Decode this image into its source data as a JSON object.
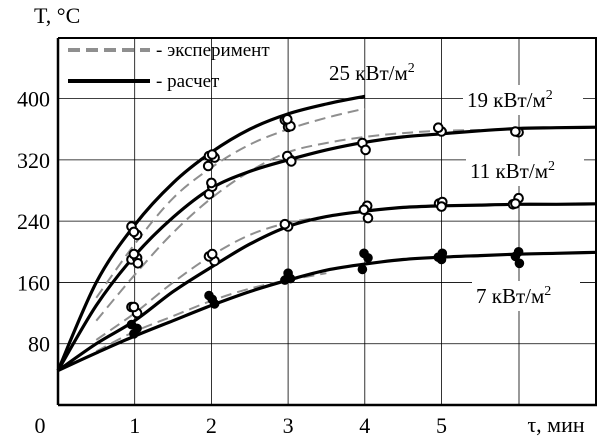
{
  "chart_data": {
    "type": "line",
    "ylabel": "T, °C",
    "xlabel": "τ, мин",
    "origin_label": "0",
    "xlim": [
      0,
      7.3
    ],
    "ylim": [
      0,
      490
    ],
    "x_ticks": [
      1,
      2,
      3,
      4,
      5
    ],
    "y_ticks": [
      80,
      160,
      240,
      320,
      400
    ],
    "grid": true,
    "legend": {
      "position": "top-left",
      "items": [
        {
          "style": "dashed-gray",
          "label": "- эксперимент"
        },
        {
          "style": "solid-black",
          "label": "- расчет"
        }
      ]
    },
    "series": [
      {
        "name": "25 кВт/м²",
        "label_parts": {
          "base": "25 кВт/м",
          "sup": "2"
        },
        "calc": {
          "x": [
            0,
            0.5,
            1,
            1.5,
            2,
            2.5,
            3,
            3.5,
            4.0
          ],
          "y": [
            45,
            160,
            235,
            290,
            330,
            360,
            380,
            393,
            403
          ]
        },
        "exp": {
          "x": [
            0.5,
            1,
            1.5,
            2,
            2.5,
            3,
            3.5,
            4.0
          ],
          "y": [
            140,
            210,
            270,
            310,
            340,
            360,
            375,
            387
          ]
        },
        "points": {
          "marker": "open",
          "x": [
            1,
            1,
            1,
            2,
            2,
            2,
            3,
            3,
            3,
            3
          ],
          "y": [
            233,
            222,
            226,
            323,
            325,
            327,
            363,
            372,
            364,
            373
          ]
        }
      },
      {
        "name": "19 кВт/м²",
        "label_parts": {
          "base": "19 кВт/м",
          "sup": "2"
        },
        "calc": {
          "x": [
            0,
            0.5,
            1,
            1.5,
            2,
            2.5,
            3,
            3.5,
            4,
            4.5,
            5,
            5.5,
            6,
            6.5,
            7.3
          ],
          "y": [
            45,
            130,
            195,
            245,
            283,
            305,
            320,
            333,
            343,
            350,
            354,
            358,
            361,
            362,
            363
          ]
        },
        "exp": {
          "x": [
            0.5,
            1,
            1.5,
            2,
            2.5,
            3,
            3.5,
            4,
            4.5,
            5,
            5.5
          ],
          "y": [
            110,
            170,
            225,
            270,
            305,
            330,
            342,
            350,
            355,
            358,
            359
          ]
        },
        "points": {
          "marker": "open",
          "x": [
            1,
            1,
            1,
            1,
            2,
            2,
            2,
            2,
            3,
            3,
            3,
            4,
            4,
            5,
            5,
            6,
            6
          ],
          "y": [
            190,
            192,
            197,
            185,
            275,
            285,
            290,
            312,
            320,
            325,
            318,
            342,
            333,
            357,
            362,
            356,
            357
          ]
        }
      },
      {
        "name": "11 кВт/м²",
        "label_parts": {
          "base": "11 кВт/м",
          "sup": "2"
        },
        "calc": {
          "x": [
            0,
            0.5,
            1,
            1.5,
            2,
            2.5,
            3,
            3.5,
            4,
            4.5,
            5,
            5.5,
            6,
            6.5,
            7.3
          ],
          "y": [
            45,
            80,
            110,
            148,
            180,
            210,
            233,
            246,
            253,
            258,
            260,
            261,
            262,
            262,
            263
          ]
        },
        "exp": {
          "x": [
            0.5,
            1,
            1.5,
            2,
            2.5,
            3,
            3.5
          ],
          "y": [
            85,
            120,
            160,
            195,
            222,
            238,
            246
          ]
        },
        "points": {
          "marker": "open",
          "x": [
            1,
            1,
            1,
            2,
            2,
            2,
            3,
            3,
            4,
            4,
            4,
            5,
            5,
            5,
            6,
            6,
            6
          ],
          "y": [
            128,
            120,
            128,
            188,
            194,
            197,
            233,
            236,
            260,
            255,
            244,
            263,
            265,
            259,
            262,
            270,
            263
          ]
        }
      },
      {
        "name": "7 кВт/м²",
        "label_parts": {
          "base": "7 кВт/м",
          "sup": "2"
        },
        "calc": {
          "x": [
            0,
            0.5,
            1,
            1.5,
            2,
            2.5,
            3,
            3.5,
            4,
            4.5,
            5,
            5.5,
            6,
            6.5,
            7.3
          ],
          "y": [
            45,
            68,
            90,
            110,
            130,
            148,
            163,
            176,
            184,
            190,
            193,
            195,
            197,
            198,
            200
          ]
        },
        "exp": {
          "x": [
            0.5,
            1,
            1.5,
            2,
            2.5,
            3,
            3.5
          ],
          "y": [
            70,
            96,
            116,
            136,
            152,
            163,
            172
          ]
        },
        "points": {
          "marker": "filled",
          "x": [
            1,
            1,
            1,
            2,
            2,
            2,
            3,
            3,
            3,
            4,
            4,
            4,
            5,
            5,
            5,
            6,
            6,
            6
          ],
          "y": [
            105,
            100,
            93,
            132,
            143,
            138,
            172,
            163,
            165,
            198,
            192,
            177,
            198,
            190,
            193,
            200,
            194,
            185
          ]
        }
      }
    ]
  }
}
